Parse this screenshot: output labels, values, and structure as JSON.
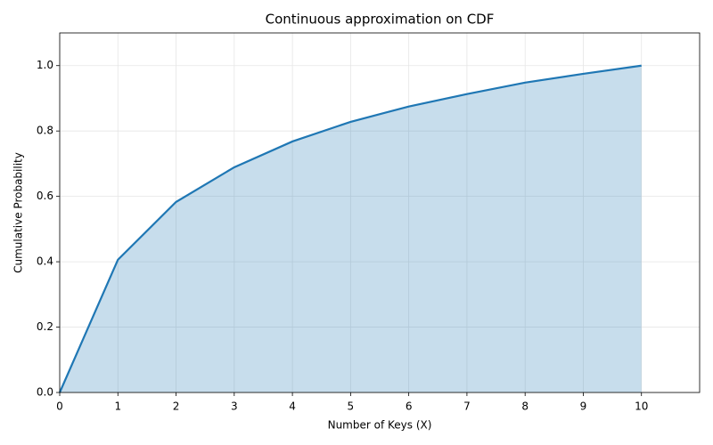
{
  "chart_data": {
    "type": "area",
    "title": "Continuous approximation on CDF",
    "x_label": "Number of Keys (X)",
    "y_label": "Cumulative Probability",
    "x": [
      0,
      1,
      2,
      3,
      4,
      5,
      6,
      7,
      8,
      9,
      10
    ],
    "values": [
      0,
      0.406,
      0.583,
      0.689,
      0.768,
      0.828,
      0.875,
      0.913,
      0.948,
      0.975,
      1.0
    ],
    "color": "#1f77b4",
    "xlim": [
      0,
      11
    ],
    "xticks": [
      0,
      1,
      2,
      3,
      4,
      5,
      6,
      7,
      8,
      9,
      10
    ],
    "ylim": [
      0,
      1.1
    ],
    "yticks": [
      {
        "value": 0,
        "label": "0.0"
      },
      {
        "value": 0.2,
        "label": "0.2"
      },
      {
        "value": 0.4,
        "label": "0.4"
      },
      {
        "value": 0.6,
        "label": "0.6"
      },
      {
        "value": 0.8,
        "label": "0.8"
      },
      {
        "value": 1.0,
        "label": "1.0"
      }
    ],
    "grid": true
  }
}
